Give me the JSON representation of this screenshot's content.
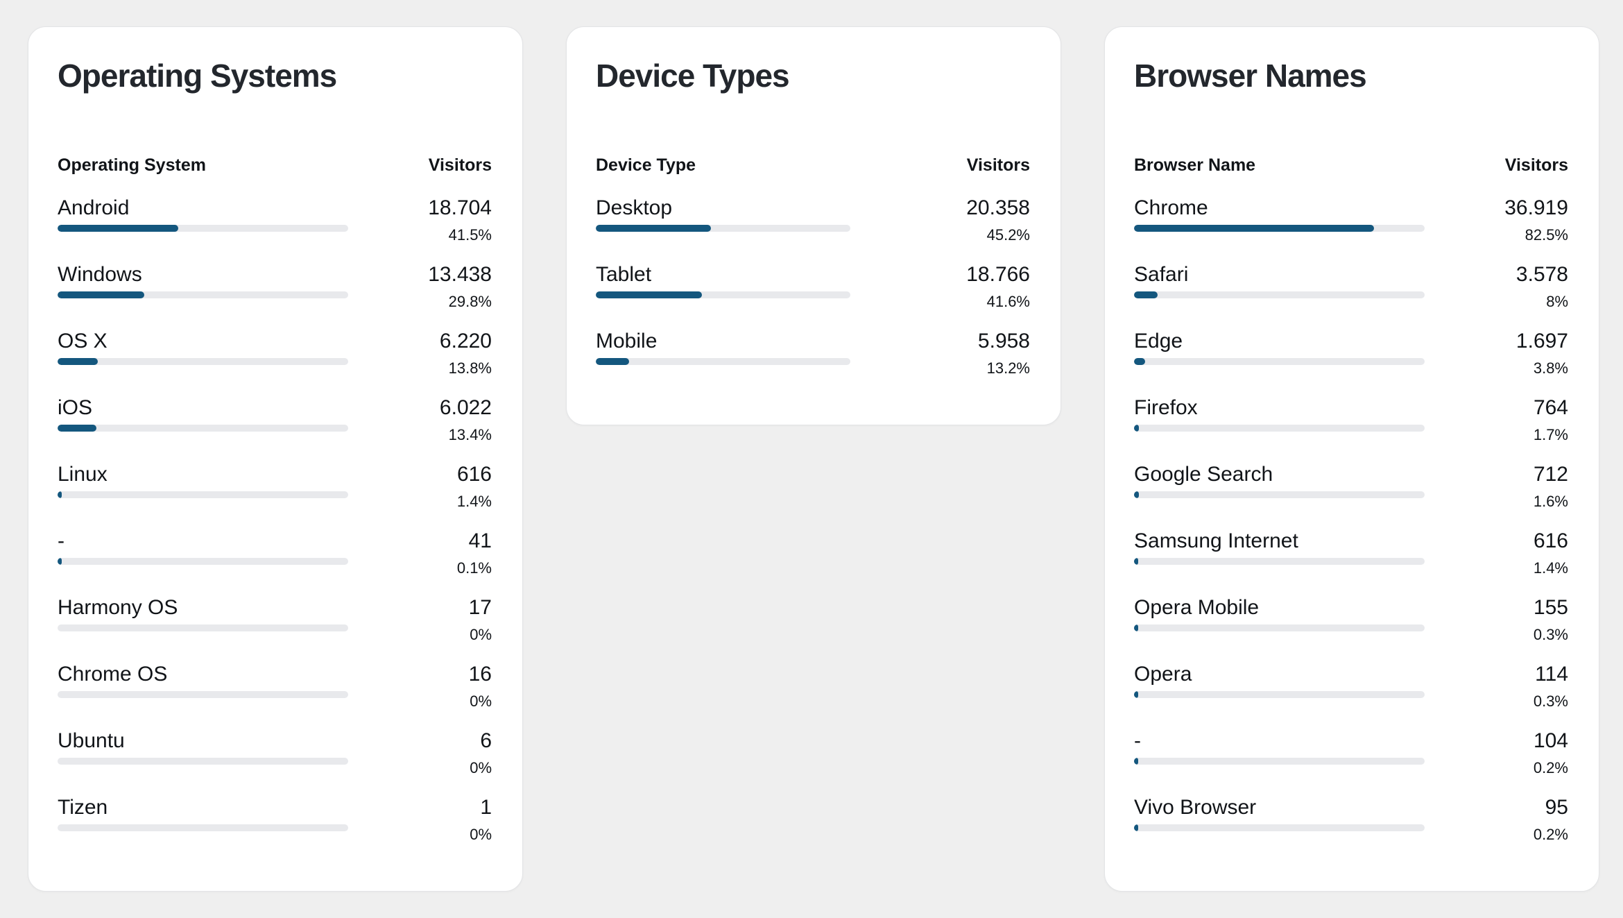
{
  "theme": {
    "page_bg": "#efefef",
    "card_bg": "#ffffff",
    "card_border": "#e3e4e6",
    "title_color": "#23272d",
    "text_primary": "#111418",
    "bar_fill": "#14577e",
    "bar_track": "#e8e9ec"
  },
  "chart_data": [
    {
      "type": "bar",
      "orientation": "horizontal",
      "title": "Operating Systems",
      "col_label": "Operating System",
      "col_value": "Visitors",
      "categories": [
        "Android",
        "Windows",
        "OS X",
        "iOS",
        "Linux",
        "-",
        "Harmony OS",
        "Chrome OS",
        "Ubuntu",
        "Tizen"
      ],
      "values": [
        18704,
        13438,
        6220,
        6022,
        616,
        41,
        17,
        16,
        6,
        1
      ],
      "values_display": [
        "18.704",
        "13.438",
        "6.220",
        "6.022",
        "616",
        "41",
        "17",
        "16",
        "6",
        "1"
      ],
      "percents": [
        41.5,
        29.8,
        13.8,
        13.4,
        1.4,
        0.1,
        0,
        0,
        0,
        0
      ],
      "percents_display": [
        "41.5%",
        "29.8%",
        "13.8%",
        "13.4%",
        "1.4%",
        "0.1%",
        "0%",
        "0%",
        "0%",
        "0%"
      ],
      "xlim": [
        0,
        100
      ],
      "grid": false,
      "legend": false
    },
    {
      "type": "bar",
      "orientation": "horizontal",
      "title": "Device Types",
      "col_label": "Device Type",
      "col_value": "Visitors",
      "categories": [
        "Desktop",
        "Tablet",
        "Mobile"
      ],
      "values": [
        20358,
        18766,
        5958
      ],
      "values_display": [
        "20.358",
        "18.766",
        "5.958"
      ],
      "percents": [
        45.2,
        41.6,
        13.2
      ],
      "percents_display": [
        "45.2%",
        "41.6%",
        "13.2%"
      ],
      "xlim": [
        0,
        100
      ],
      "grid": false,
      "legend": false
    },
    {
      "type": "bar",
      "orientation": "horizontal",
      "title": "Browser Names",
      "col_label": "Browser Name",
      "col_value": "Visitors",
      "categories": [
        "Chrome",
        "Safari",
        "Edge",
        "Firefox",
        "Google Search",
        "Samsung Internet",
        "Opera Mobile",
        "Opera",
        "-",
        "Vivo Browser"
      ],
      "values": [
        36919,
        3578,
        1697,
        764,
        712,
        616,
        155,
        114,
        104,
        95
      ],
      "values_display": [
        "36.919",
        "3.578",
        "1.697",
        "764",
        "712",
        "616",
        "155",
        "114",
        "104",
        "95"
      ],
      "percents": [
        82.5,
        8,
        3.8,
        1.7,
        1.6,
        1.4,
        0.3,
        0.3,
        0.2,
        0.2
      ],
      "percents_display": [
        "82.5%",
        "8%",
        "3.8%",
        "1.7%",
        "1.6%",
        "1.4%",
        "0.3%",
        "0.3%",
        "0.2%",
        "0.2%"
      ],
      "xlim": [
        0,
        100
      ],
      "grid": false,
      "legend": false
    }
  ]
}
